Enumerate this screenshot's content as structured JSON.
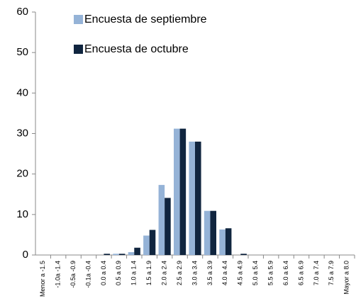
{
  "chart_data": {
    "type": "bar",
    "categories": [
      "Menor a -1.5",
      "-1.0a -1.4",
      "-0.5a -0.9",
      "-0.1a -0.4",
      "0.0 a 0.4",
      "0.5 a 0.9",
      "1.0 a 1.4",
      "1.5 a 1.9",
      "2.0 a 2.4",
      "2.5 a 2.9",
      "3.0 a 3.4",
      "3.5 a 3.9",
      "4.0 a 4.4",
      "4.5 a 4.9",
      "5.0 a 5.4",
      "5.5 a 5.9",
      "6.0 a 6.4",
      "6.5 a 6.9",
      "7.0 a 7.4",
      "7.5 a 7.9",
      "Mayor a 8.0"
    ],
    "series": [
      {
        "name": "Encuesta de septiembre",
        "color": "#95b3d7",
        "values": [
          0,
          0,
          0,
          0,
          0,
          0.3,
          0.7,
          4.8,
          17.3,
          31.2,
          28,
          10.9,
          6.3,
          0,
          0,
          0,
          0,
          0,
          0,
          0,
          0
        ]
      },
      {
        "name": "Encuesta de octubre",
        "color": "#10253f",
        "values": [
          0,
          0,
          0,
          0,
          0.3,
          0.3,
          1.8,
          6.2,
          14.1,
          31.2,
          28,
          10.9,
          6.6,
          0.3,
          0,
          0,
          0,
          0,
          0,
          0,
          0
        ]
      }
    ],
    "ylim": [
      0,
      60
    ],
    "yticks": [
      0,
      10,
      20,
      30,
      40,
      50,
      60
    ],
    "grid": false,
    "legend": "top-left"
  }
}
